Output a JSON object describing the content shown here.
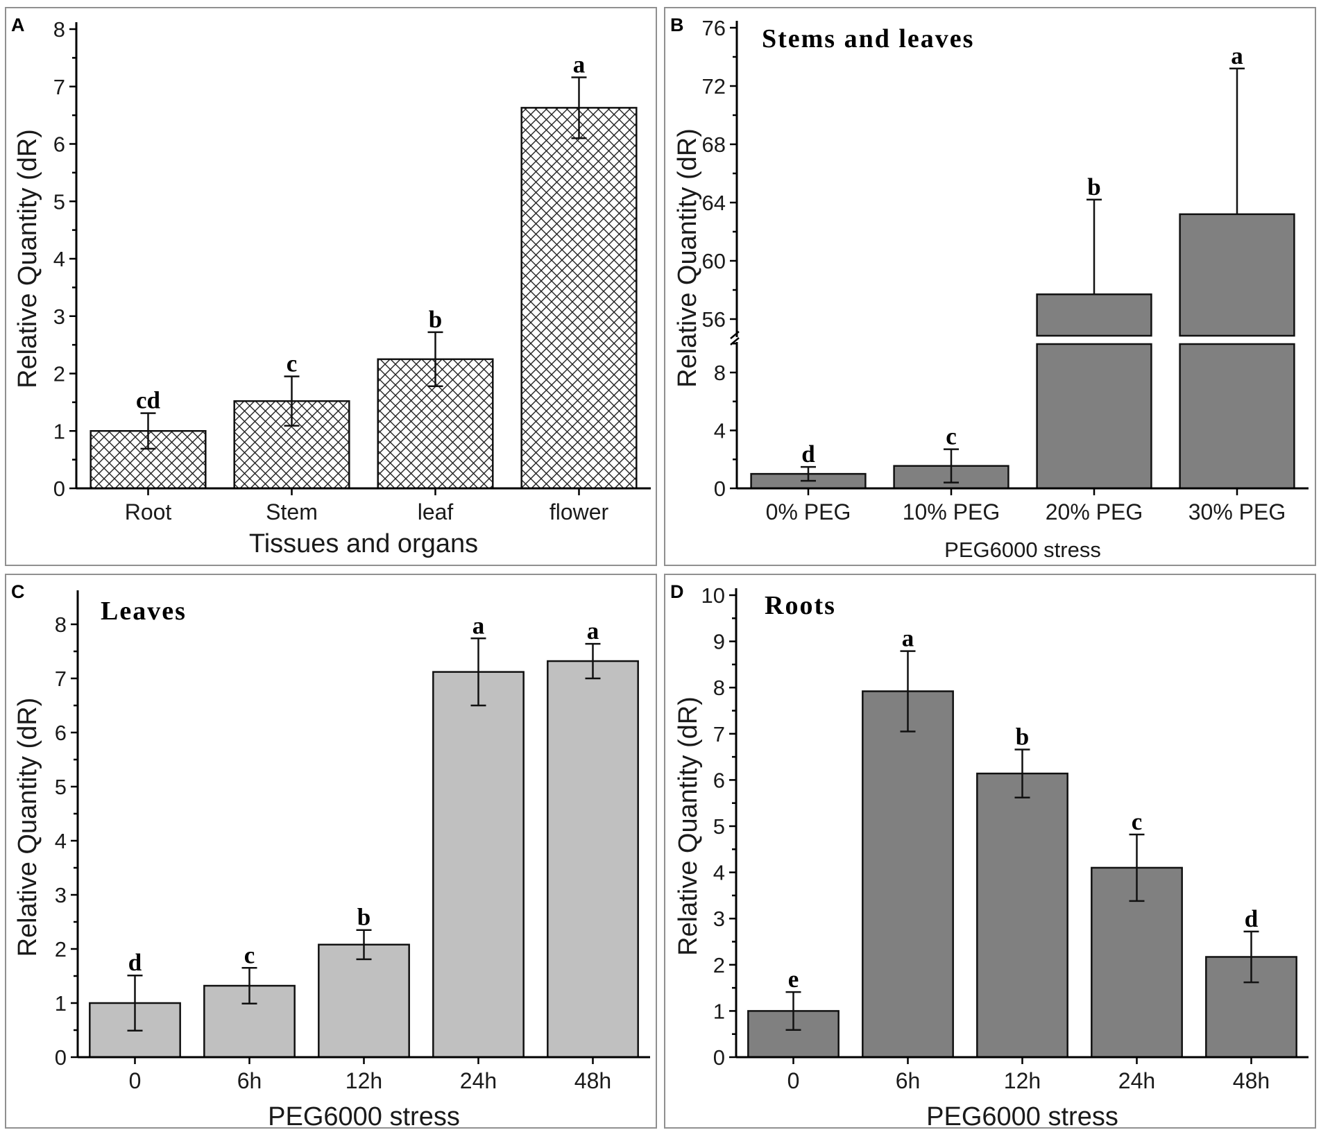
{
  "chart_data": [
    {
      "panel": "A",
      "type": "bar",
      "title": "",
      "categories": [
        "Root",
        "Stem",
        "leaf",
        "flower"
      ],
      "values": [
        1.0,
        1.52,
        2.25,
        6.63
      ],
      "errors": [
        0.31,
        0.43,
        0.47,
        0.53
      ],
      "significance": [
        "cd",
        "c",
        "b",
        "a"
      ],
      "xlabel": "Tissues and organs",
      "ylabel": "Relative Quantity (dR)",
      "ylim": [
        0,
        8
      ],
      "yticks": [
        "0",
        "1",
        "2",
        "3",
        "4",
        "5",
        "6",
        "7",
        "8"
      ],
      "style": "crosshatch"
    },
    {
      "panel": "B",
      "type": "bar",
      "title": "Stems and leaves",
      "categories": [
        "0% PEG",
        "10% PEG",
        "20% PEG",
        "30% PEG"
      ],
      "values": [
        1.0,
        1.55,
        57.7,
        63.2
      ],
      "errors": [
        0.48,
        1.15,
        6.5,
        10.0
      ],
      "significance": [
        "d",
        "c",
        "b",
        "a"
      ],
      "xlabel": "PEG6000 stress",
      "ylabel": "Relative Quantity (dR)",
      "broken_axis": {
        "lower_range": [
          0,
          10
        ],
        "upper_range": [
          54,
          76
        ]
      },
      "yticks_lower": [
        "0",
        "4",
        "8"
      ],
      "yticks_upper": [
        "56",
        "60",
        "64",
        "68",
        "72",
        "76"
      ],
      "color": "#808080"
    },
    {
      "panel": "C",
      "type": "bar",
      "title": "Leaves",
      "categories": [
        "0",
        "6h",
        "12h",
        "24h",
        "48h"
      ],
      "values": [
        1.0,
        1.32,
        2.08,
        7.12,
        7.32
      ],
      "errors": [
        0.51,
        0.33,
        0.27,
        0.62,
        0.32
      ],
      "significance": [
        "d",
        "c",
        "b",
        "a",
        "a"
      ],
      "xlabel": "PEG6000 stress",
      "ylabel": "Relative Quantity (dR)",
      "ylim": [
        0,
        8.5
      ],
      "yticks": [
        "0",
        "1",
        "2",
        "3",
        "4",
        "5",
        "6",
        "7",
        "8"
      ],
      "color": "#c0c0c0"
    },
    {
      "panel": "D",
      "type": "bar",
      "title": "Roots",
      "categories": [
        "0",
        "6h",
        "12h",
        "24h",
        "48h"
      ],
      "values": [
        1.0,
        7.92,
        6.14,
        4.1,
        2.17
      ],
      "errors": [
        0.41,
        0.87,
        0.52,
        0.72,
        0.55
      ],
      "significance": [
        "e",
        "a",
        "b",
        "c",
        "d"
      ],
      "xlabel": "PEG6000 stress",
      "ylabel": "Relative Quantity (dR)",
      "ylim": [
        0,
        10
      ],
      "yticks": [
        "0",
        "1",
        "2",
        "3",
        "4",
        "5",
        "6",
        "7",
        "8",
        "9",
        "10"
      ],
      "color": "#808080"
    }
  ]
}
